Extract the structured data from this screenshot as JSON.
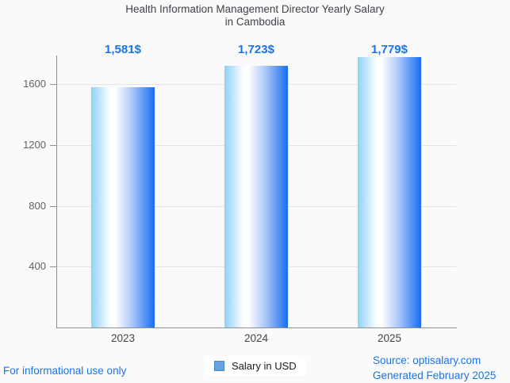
{
  "page": {
    "background": "#fafafa"
  },
  "title": {
    "line1": "Health Information Management Director Yearly Salary",
    "line2": "in Cambodia"
  },
  "chart_data": {
    "type": "bar",
    "title": "Health Information Management Director Yearly Salary in Cambodia",
    "categories": [
      "2023",
      "2024",
      "2025"
    ],
    "values": [
      1581,
      1723,
      1779
    ],
    "value_labels": [
      "1,581$",
      "1,723$",
      "1,779$"
    ],
    "xlabel": "",
    "ylabel": "",
    "ylim": [
      0,
      1790
    ],
    "yticks": [
      400,
      800,
      1200,
      1600
    ],
    "grid": true,
    "legend": {
      "label": "Salary in USD",
      "position": "bottom"
    },
    "colors": {
      "bar_gradient_left": "#8ed1f7",
      "bar_gradient_mid": "#ffffff",
      "bar_gradient_right": "#176df2",
      "value_label": "#1a73e8",
      "axis": "#8f8f8f",
      "gridline": "#e5e5e5",
      "tick_text": "#616161",
      "legend_swatch": "#66a3e3"
    }
  },
  "footer": {
    "left": "For informational use only",
    "source": "Source: optisalary.com",
    "generated": "Generated February 2025"
  }
}
